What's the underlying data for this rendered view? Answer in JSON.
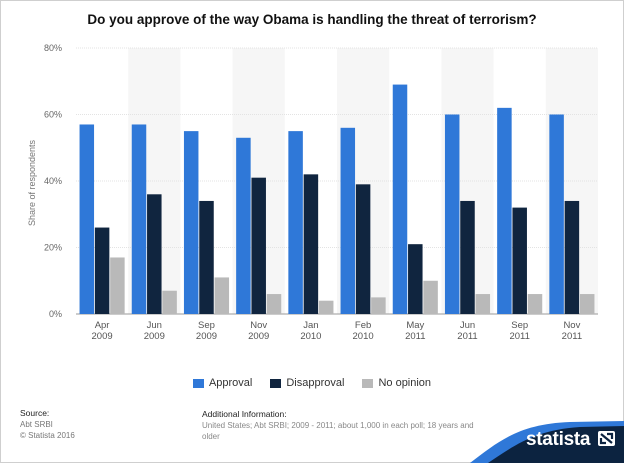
{
  "title": "Do you approve of the way Obama is handling the threat of terrorism?",
  "chart_data": {
    "type": "bar",
    "title": "Do you approve of the way Obama is handling the threat of terrorism?",
    "ylabel": "Share of respondents",
    "xlabel": "",
    "ylim": [
      0,
      80
    ],
    "yticks": [
      "0%",
      "20%",
      "40%",
      "60%",
      "80%"
    ],
    "ytick_values": [
      0,
      20,
      40,
      60,
      80
    ],
    "categories": [
      [
        "Apr",
        "2009"
      ],
      [
        "Jun",
        "2009"
      ],
      [
        "Sep",
        "2009"
      ],
      [
        "Nov",
        "2009"
      ],
      [
        "Jan",
        "2010"
      ],
      [
        "Feb",
        "2010"
      ],
      [
        "May",
        "2011"
      ],
      [
        "Jun",
        "2011"
      ],
      [
        "Sep",
        "2011"
      ],
      [
        "Nov",
        "2011"
      ]
    ],
    "series": [
      {
        "name": "Approval",
        "color": "#2f78d8",
        "values": [
          57,
          57,
          55,
          53,
          55,
          56,
          69,
          60,
          62,
          60
        ]
      },
      {
        "name": "Disapproval",
        "color": "#10253f",
        "values": [
          26,
          36,
          34,
          41,
          42,
          39,
          21,
          34,
          32,
          34
        ]
      },
      {
        "name": "No opinion",
        "color": "#b9b9b9",
        "values": [
          17,
          7,
          11,
          6,
          4,
          5,
          10,
          6,
          6,
          6
        ]
      }
    ],
    "grid": true,
    "legend_position": "bottom-center"
  },
  "legend": {
    "approval": "Approval",
    "disapproval": "Disapproval",
    "no_opinion": "No opinion"
  },
  "source": {
    "heading": "Source:",
    "line1": "Abt SRBI",
    "line2": "© Statista 2016"
  },
  "additional_info": {
    "heading": "Additional Information:",
    "text": "United States; Abt SRBI; 2009 - 2011; about 1,000 in each poll; 18 years and older"
  },
  "brand": {
    "name": "statista",
    "color": "#0c2340"
  }
}
